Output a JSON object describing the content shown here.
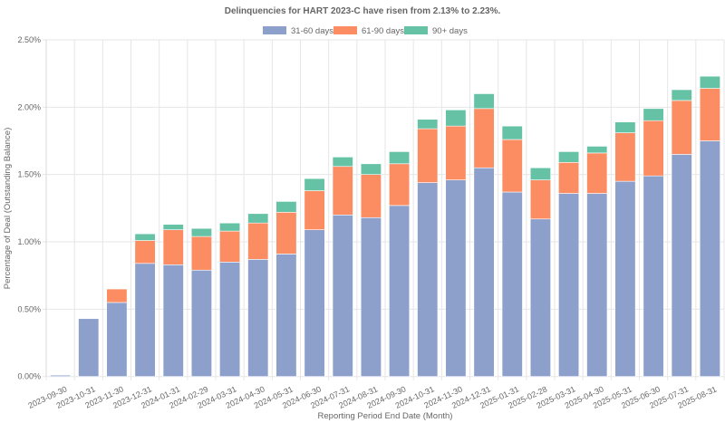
{
  "chart_data": {
    "type": "bar",
    "stacked": true,
    "title": "Delinquencies for HART 2023-C have risen from 2.13% to 2.23%.",
    "xlabel": "Reporting Period End Date (Month)",
    "ylabel": "Percentage of Deal (Outstanding Balance)",
    "ylim": [
      0,
      2.5
    ],
    "yticks": [
      0,
      0.5,
      1.0,
      1.5,
      2.0,
      2.5
    ],
    "ytick_labels": [
      "0.00%",
      "0.50%",
      "1.00%",
      "1.50%",
      "2.00%",
      "2.50%"
    ],
    "grid": true,
    "legend_position": "top-center",
    "categories": [
      "2023-09-30",
      "2023-10-31",
      "2023-11-30",
      "2023-12-31",
      "2024-01-31",
      "2024-02-29",
      "2024-03-31",
      "2024-04-30",
      "2024-05-31",
      "2024-06-30",
      "2024-07-31",
      "2024-08-31",
      "2024-09-30",
      "2024-10-31",
      "2024-11-30",
      "2024-12-31",
      "2025-01-31",
      "2025-02-28",
      "2025-03-31",
      "2025-04-30",
      "2025-05-31",
      "2025-06-30",
      "2025-07-31",
      "2025-08-31"
    ],
    "series": [
      {
        "name": "31-60 days",
        "color": "#8da0cb",
        "values": [
          0.01,
          0.43,
          0.55,
          0.84,
          0.83,
          0.79,
          0.85,
          0.87,
          0.91,
          1.09,
          1.2,
          1.18,
          1.27,
          1.44,
          1.46,
          1.55,
          1.37,
          1.17,
          1.36,
          1.36,
          1.45,
          1.49,
          1.65,
          1.75
        ]
      },
      {
        "name": "61-90 days",
        "color": "#fc8d62",
        "values": [
          0.0,
          0.0,
          0.1,
          0.17,
          0.26,
          0.25,
          0.23,
          0.27,
          0.31,
          0.29,
          0.36,
          0.32,
          0.31,
          0.4,
          0.4,
          0.44,
          0.39,
          0.29,
          0.23,
          0.3,
          0.36,
          0.41,
          0.4,
          0.39
        ]
      },
      {
        "name": "90+ days",
        "color": "#66c2a5",
        "values": [
          0.0,
          0.0,
          0.0,
          0.05,
          0.04,
          0.06,
          0.06,
          0.07,
          0.08,
          0.09,
          0.07,
          0.08,
          0.09,
          0.07,
          0.12,
          0.11,
          0.1,
          0.09,
          0.08,
          0.05,
          0.08,
          0.09,
          0.08,
          0.09
        ]
      }
    ]
  }
}
